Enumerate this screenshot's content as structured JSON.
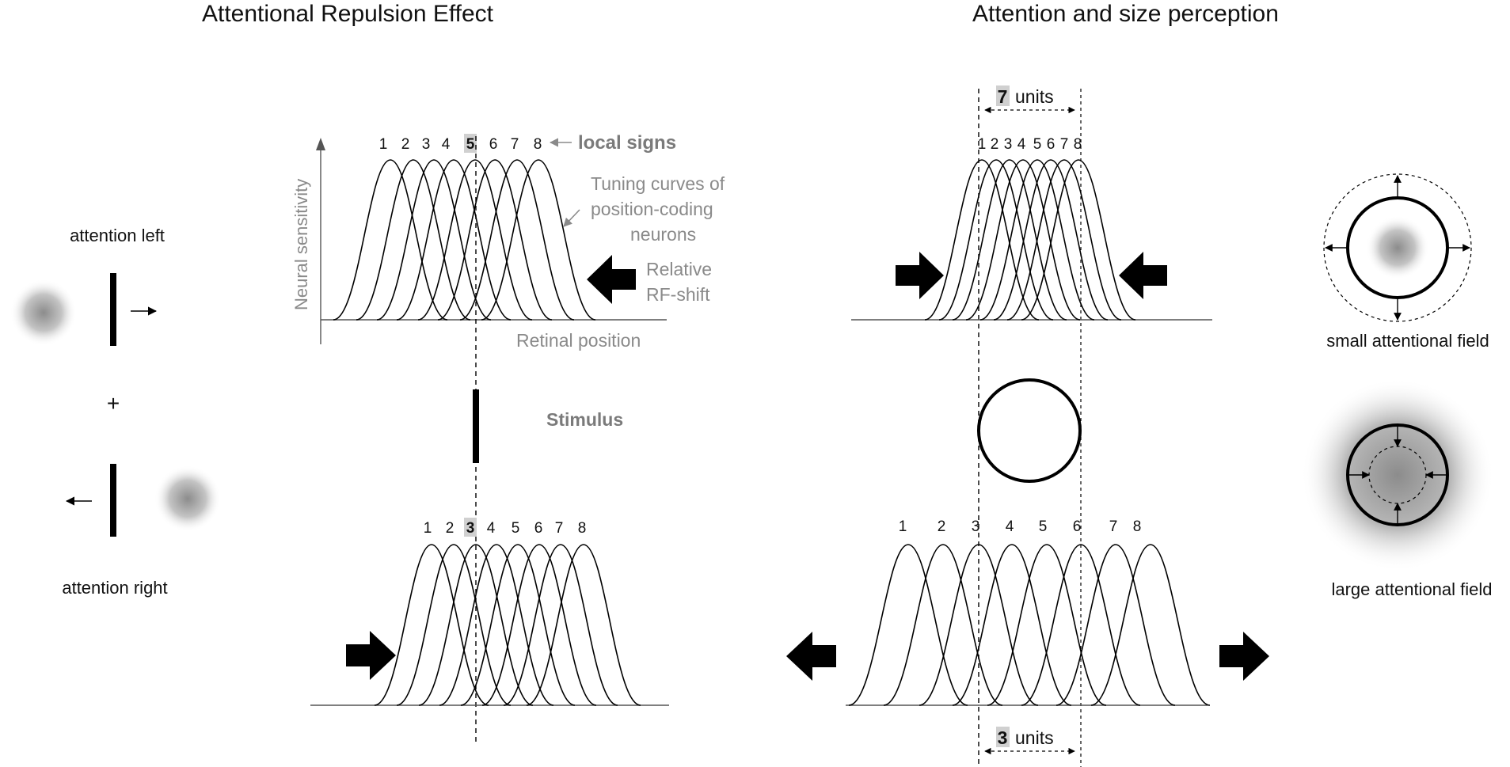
{
  "titles": {
    "left": "Attentional Repulsion Effect",
    "right": "Attention and size perception"
  },
  "left_panel": {
    "attention_left": "attention left",
    "attention_right": "attention right",
    "fixation": "+"
  },
  "repulsion": {
    "top_signs": [
      "1",
      "2",
      "3",
      "4",
      "5",
      "6",
      "7",
      "8"
    ],
    "top_highlight": "5",
    "local_signs": "local signs",
    "ylabel": "Neural sensitivity",
    "xlabel": "Retinal position",
    "tuning_curves": [
      "Tuning  curves of",
      "position-coding",
      "neurons"
    ],
    "relative_shift": [
      "Relative",
      "RF-shift"
    ],
    "stimulus": "Stimulus",
    "bottom_signs": [
      "1",
      "2",
      "3",
      "4",
      "5",
      "6",
      "7",
      "8"
    ],
    "bottom_highlight": "3"
  },
  "size": {
    "top_units_num": "7",
    "top_units_word": "units",
    "top_signs": [
      "1",
      "2",
      "3",
      "4",
      "5",
      "6",
      "7",
      "8"
    ],
    "bottom_signs": [
      "1",
      "2",
      "3",
      "4",
      "5",
      "6",
      "7",
      "8"
    ],
    "bottom_units_num": "3",
    "bottom_units_word": "units",
    "small_field": "small attentional field",
    "large_field": "large attentional field"
  },
  "colors": {
    "highlight": "#d0d0d0",
    "gray_text": "#8a8a8a",
    "blob": "#8c8c8c"
  }
}
